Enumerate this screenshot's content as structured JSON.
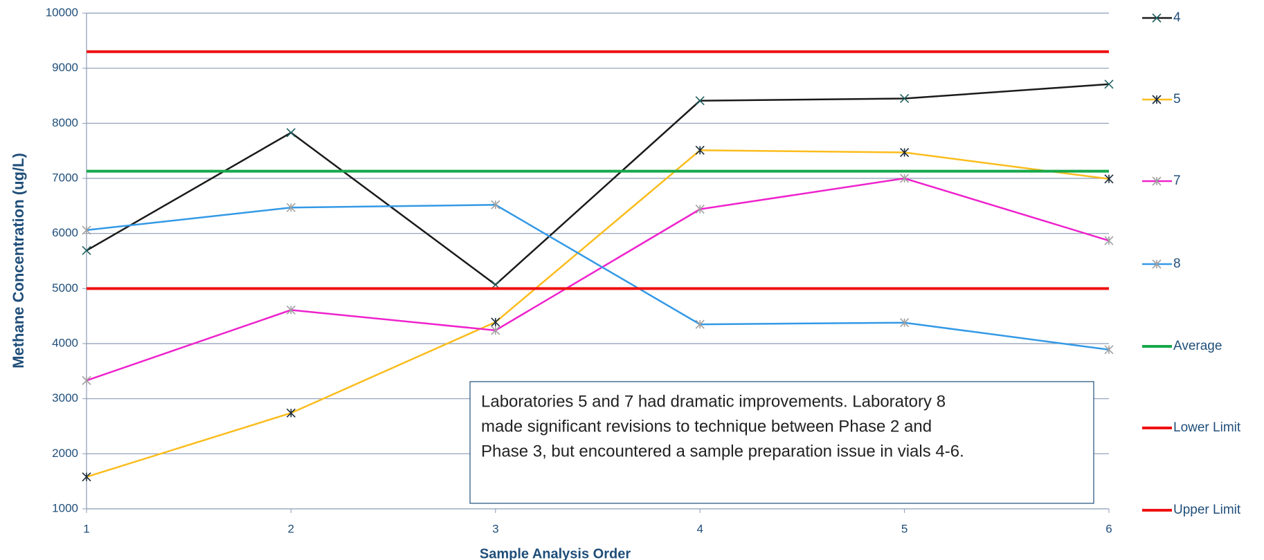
{
  "chart_data": {
    "type": "line",
    "x": [
      1,
      2,
      3,
      4,
      5,
      6
    ],
    "xlim": [
      1,
      6
    ],
    "xticks": [
      1,
      2,
      3,
      4,
      5,
      6
    ],
    "ylim": [
      1000,
      10000
    ],
    "yticks": [
      1000,
      2000,
      3000,
      4000,
      5000,
      6000,
      7000,
      8000,
      9000,
      10000
    ],
    "grid": true,
    "xlabel": "Sample Analysis Order",
    "ylabel": "Methane Concentration (ug/L)",
    "legend": "right",
    "series": [
      {
        "name": "4",
        "color": "#1a1a1a",
        "marker": "x",
        "marker_color": "#1f5f5f",
        "values": [
          5690,
          7830,
          5070,
          8410,
          8450,
          8710
        ]
      },
      {
        "name": "5",
        "color": "#fbbc1c",
        "marker": "star",
        "marker_color": "#1a2a3a",
        "values": [
          1580,
          2740,
          4390,
          7510,
          7470,
          6990
        ]
      },
      {
        "name": "7",
        "color": "#ee22cc",
        "marker": "star",
        "marker_color": "#a0a0a0",
        "values": [
          3330,
          4610,
          4240,
          6440,
          7000,
          5870
        ]
      },
      {
        "name": "8",
        "color": "#3399e6",
        "marker": "star",
        "marker_color": "#a0a0a0",
        "values": [
          6060,
          6470,
          6520,
          4350,
          4380,
          3890
        ]
      },
      {
        "name": "Average",
        "color": "#16a84a",
        "values": [
          7130,
          7130,
          7130,
          7130,
          7130,
          7130
        ]
      },
      {
        "name": "Lower Limit",
        "color": "#ee1111",
        "values": [
          5000,
          5000,
          5000,
          5000,
          5000,
          5000
        ]
      },
      {
        "name": "Upper Limit",
        "color": "#ee1111",
        "values": [
          9300,
          9300,
          9300,
          9300,
          9300,
          9300
        ]
      }
    ],
    "annotation": [
      "Laboratories 5 and 7 had dramatic improvements. Laboratory 8",
      "made significant revisions to technique between Phase 2 and",
      "Phase 3, but encountered a sample preparation issue in vials 4-6."
    ]
  }
}
